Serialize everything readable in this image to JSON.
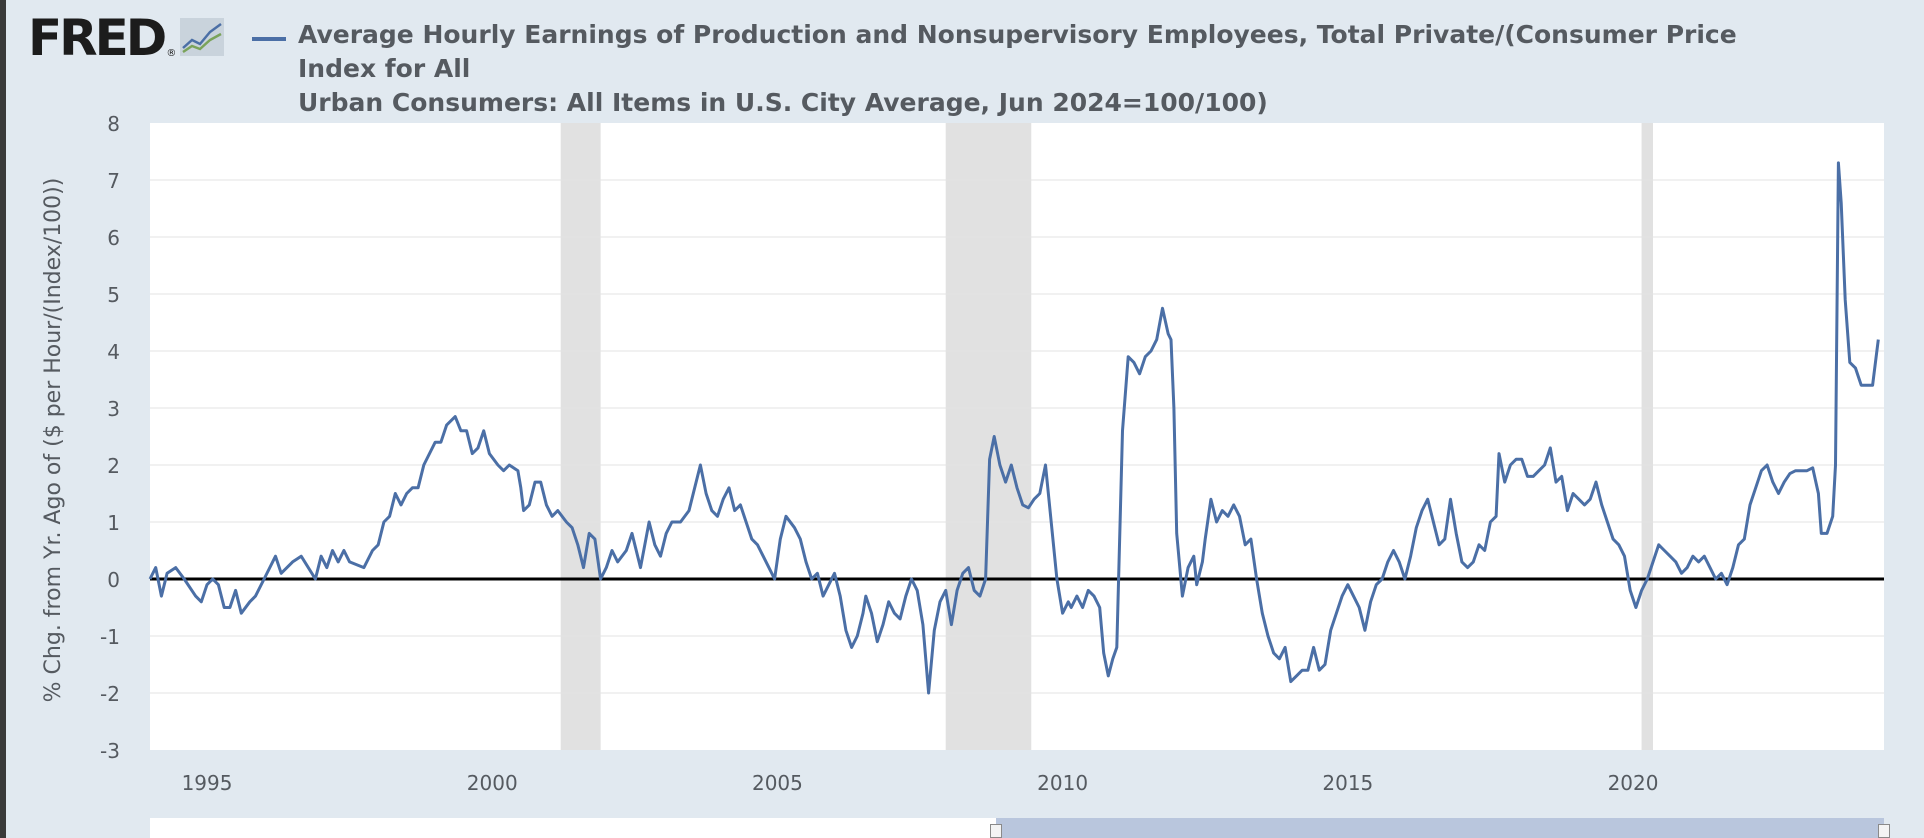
{
  "brand": {
    "logo_text": "FRED",
    "logo_mark": "®"
  },
  "colors": {
    "series": "#4b6fa6",
    "recession": "#e1e1e1",
    "zero_line": "#000000",
    "background": "#e1e9f0"
  },
  "chart_data": {
    "type": "line",
    "title": "Average Hourly Earnings of Production and Nonsupervisory Employees, Total Private/(Consumer Price Index for All\nUrban Consumers: All Items in U.S. City Average, Jun 2024=100/100)",
    "ylabel": "% Chg. from Yr. Ago of ($ per Hour/(Index/100))",
    "xlabel": "",
    "xlim": [
      1994.0,
      2024.4
    ],
    "ylim": [
      -3,
      8
    ],
    "y_ticks": [
      "8",
      "7",
      "6",
      "5",
      "4",
      "3",
      "2",
      "1",
      "0",
      "-1",
      "-2",
      "-3"
    ],
    "x_ticks": [
      "1995",
      "2000",
      "2005",
      "2010",
      "2015",
      "2020"
    ],
    "grid": true,
    "reference_line": 0,
    "recessions": [
      [
        2001.2,
        2001.9
      ],
      [
        2007.95,
        2009.45
      ],
      [
        2020.15,
        2020.35
      ]
    ],
    "series": [
      {
        "name": "Average Hourly Earnings of Production and Nonsupervisory Employees, Total Private/(Consumer Price Index for All Urban Consumers: All Items in U.S. City Average, Jun 2024=100/100)",
        "points": [
          [
            1994.0,
            0.0
          ],
          [
            1994.1,
            0.2
          ],
          [
            1994.2,
            -0.3
          ],
          [
            1994.3,
            0.1
          ],
          [
            1994.45,
            0.2
          ],
          [
            1994.6,
            0.0
          ],
          [
            1994.8,
            -0.3
          ],
          [
            1994.9,
            -0.4
          ],
          [
            1995.0,
            -0.1
          ],
          [
            1995.1,
            0.0
          ],
          [
            1995.2,
            -0.1
          ],
          [
            1995.3,
            -0.5
          ],
          [
            1995.4,
            -0.5
          ],
          [
            1995.5,
            -0.2
          ],
          [
            1995.6,
            -0.6
          ],
          [
            1995.75,
            -0.4
          ],
          [
            1995.85,
            -0.3
          ],
          [
            1996.0,
            0.0
          ],
          [
            1996.2,
            0.4
          ],
          [
            1996.3,
            0.1
          ],
          [
            1996.5,
            0.3
          ],
          [
            1996.65,
            0.4
          ],
          [
            1996.9,
            0.0
          ],
          [
            1997.0,
            0.4
          ],
          [
            1997.1,
            0.2
          ],
          [
            1997.2,
            0.5
          ],
          [
            1997.3,
            0.3
          ],
          [
            1997.4,
            0.5
          ],
          [
            1997.5,
            0.3
          ],
          [
            1997.75,
            0.2
          ],
          [
            1997.9,
            0.5
          ],
          [
            1998.0,
            0.6
          ],
          [
            1998.1,
            1.0
          ],
          [
            1998.2,
            1.1
          ],
          [
            1998.3,
            1.5
          ],
          [
            1998.4,
            1.3
          ],
          [
            1998.5,
            1.5
          ],
          [
            1998.6,
            1.6
          ],
          [
            1998.7,
            1.6
          ],
          [
            1998.8,
            2.0
          ],
          [
            1999.0,
            2.4
          ],
          [
            1999.1,
            2.4
          ],
          [
            1999.2,
            2.7
          ],
          [
            1999.35,
            2.85
          ],
          [
            1999.45,
            2.6
          ],
          [
            1999.55,
            2.6
          ],
          [
            1999.65,
            2.2
          ],
          [
            1999.75,
            2.3
          ],
          [
            1999.85,
            2.6
          ],
          [
            1999.95,
            2.2
          ],
          [
            2000.1,
            2.0
          ],
          [
            2000.2,
            1.9
          ],
          [
            2000.3,
            2.0
          ],
          [
            2000.45,
            1.9
          ],
          [
            2000.5,
            1.6
          ],
          [
            2000.55,
            1.2
          ],
          [
            2000.65,
            1.3
          ],
          [
            2000.75,
            1.7
          ],
          [
            2000.85,
            1.7
          ],
          [
            2000.95,
            1.3
          ],
          [
            2001.05,
            1.1
          ],
          [
            2001.15,
            1.2
          ],
          [
            2001.3,
            1.0
          ],
          [
            2001.4,
            0.9
          ],
          [
            2001.5,
            0.6
          ],
          [
            2001.6,
            0.2
          ],
          [
            2001.7,
            0.8
          ],
          [
            2001.8,
            0.7
          ],
          [
            2001.9,
            0.0
          ],
          [
            2002.0,
            0.2
          ],
          [
            2002.1,
            0.5
          ],
          [
            2002.2,
            0.3
          ],
          [
            2002.35,
            0.5
          ],
          [
            2002.45,
            0.8
          ],
          [
            2002.6,
            0.2
          ],
          [
            2002.75,
            1.0
          ],
          [
            2002.85,
            0.6
          ],
          [
            2002.95,
            0.4
          ],
          [
            2003.05,
            0.8
          ],
          [
            2003.15,
            1.0
          ],
          [
            2003.3,
            1.0
          ],
          [
            2003.45,
            1.2
          ],
          [
            2003.55,
            1.6
          ],
          [
            2003.65,
            2.0
          ],
          [
            2003.75,
            1.5
          ],
          [
            2003.85,
            1.2
          ],
          [
            2003.95,
            1.1
          ],
          [
            2004.05,
            1.4
          ],
          [
            2004.15,
            1.6
          ],
          [
            2004.25,
            1.2
          ],
          [
            2004.35,
            1.3
          ],
          [
            2004.45,
            1.0
          ],
          [
            2004.55,
            0.7
          ],
          [
            2004.65,
            0.6
          ],
          [
            2004.75,
            0.4
          ],
          [
            2004.85,
            0.2
          ],
          [
            2004.95,
            0.0
          ],
          [
            2005.05,
            0.7
          ],
          [
            2005.15,
            1.1
          ],
          [
            2005.3,
            0.9
          ],
          [
            2005.4,
            0.7
          ],
          [
            2005.5,
            0.3
          ],
          [
            2005.6,
            0.0
          ],
          [
            2005.7,
            0.1
          ],
          [
            2005.8,
            -0.3
          ],
          [
            2005.9,
            -0.1
          ],
          [
            2006.0,
            0.1
          ],
          [
            2006.1,
            -0.3
          ],
          [
            2006.2,
            -0.9
          ],
          [
            2006.3,
            -1.2
          ],
          [
            2006.4,
            -1.0
          ],
          [
            2006.5,
            -0.6
          ],
          [
            2006.55,
            -0.3
          ],
          [
            2006.65,
            -0.6
          ],
          [
            2006.75,
            -1.1
          ],
          [
            2006.85,
            -0.8
          ],
          [
            2006.95,
            -0.4
          ],
          [
            2007.05,
            -0.6
          ],
          [
            2007.15,
            -0.7
          ],
          [
            2007.25,
            -0.3
          ],
          [
            2007.35,
            0.0
          ],
          [
            2007.45,
            -0.2
          ],
          [
            2007.55,
            -0.8
          ],
          [
            2007.65,
            -2.0
          ],
          [
            2007.75,
            -0.9
          ],
          [
            2007.85,
            -0.4
          ],
          [
            2007.95,
            -0.2
          ],
          [
            2008.05,
            -0.8
          ],
          [
            2008.15,
            -0.2
          ],
          [
            2008.25,
            0.1
          ],
          [
            2008.35,
            0.2
          ],
          [
            2008.45,
            -0.2
          ],
          [
            2008.55,
            -0.3
          ],
          [
            2008.65,
            0.0
          ],
          [
            2008.72,
            2.1
          ],
          [
            2008.8,
            2.5
          ],
          [
            2008.9,
            2.0
          ],
          [
            2009.0,
            1.7
          ],
          [
            2009.1,
            2.0
          ],
          [
            2009.2,
            1.6
          ],
          [
            2009.3,
            1.3
          ],
          [
            2009.4,
            1.25
          ],
          [
            2009.5,
            1.4
          ],
          [
            2009.6,
            1.5
          ],
          [
            2009.7,
            2.0
          ],
          [
            2009.8,
            1.0
          ],
          [
            2009.9,
            0.0
          ],
          [
            2010.0,
            -0.6
          ],
          [
            2010.1,
            -0.4
          ],
          [
            2010.15,
            -0.5
          ],
          [
            2010.25,
            -0.3
          ],
          [
            2010.35,
            -0.5
          ],
          [
            2010.45,
            -0.2
          ],
          [
            2010.55,
            -0.3
          ],
          [
            2010.65,
            -0.5
          ],
          [
            2010.72,
            -1.3
          ],
          [
            2010.8,
            -1.7
          ],
          [
            2010.88,
            -1.4
          ],
          [
            2010.95,
            -1.2
          ],
          [
            2011.05,
            2.6
          ],
          [
            2011.15,
            3.9
          ],
          [
            2011.25,
            3.8
          ],
          [
            2011.35,
            3.6
          ],
          [
            2011.45,
            3.9
          ],
          [
            2011.55,
            4.0
          ],
          [
            2011.65,
            4.2
          ],
          [
            2011.75,
            4.75
          ],
          [
            2011.85,
            4.3
          ],
          [
            2011.9,
            4.2
          ],
          [
            2011.95,
            3.0
          ],
          [
            2012.0,
            0.8
          ],
          [
            2012.1,
            -0.3
          ],
          [
            2012.2,
            0.2
          ],
          [
            2012.3,
            0.4
          ],
          [
            2012.35,
            -0.1
          ],
          [
            2012.45,
            0.3
          ],
          [
            2012.5,
            0.7
          ],
          [
            2012.6,
            1.4
          ],
          [
            2012.7,
            1.0
          ],
          [
            2012.8,
            1.2
          ],
          [
            2012.9,
            1.1
          ],
          [
            2013.0,
            1.3
          ],
          [
            2013.1,
            1.1
          ],
          [
            2013.2,
            0.6
          ],
          [
            2013.3,
            0.7
          ],
          [
            2013.4,
            0.0
          ],
          [
            2013.5,
            -0.6
          ],
          [
            2013.6,
            -1.0
          ],
          [
            2013.7,
            -1.3
          ],
          [
            2013.8,
            -1.4
          ],
          [
            2013.9,
            -1.2
          ],
          [
            2014.0,
            -1.8
          ],
          [
            2014.1,
            -1.7
          ],
          [
            2014.2,
            -1.6
          ],
          [
            2014.3,
            -1.6
          ],
          [
            2014.4,
            -1.2
          ],
          [
            2014.5,
            -1.6
          ],
          [
            2014.6,
            -1.5
          ],
          [
            2014.7,
            -0.9
          ],
          [
            2014.8,
            -0.6
          ],
          [
            2014.9,
            -0.3
          ],
          [
            2015.0,
            -0.1
          ],
          [
            2015.1,
            -0.3
          ],
          [
            2015.2,
            -0.5
          ],
          [
            2015.3,
            -0.9
          ],
          [
            2015.4,
            -0.4
          ],
          [
            2015.5,
            -0.1
          ],
          [
            2015.6,
            0.0
          ],
          [
            2015.7,
            0.3
          ],
          [
            2015.8,
            0.5
          ],
          [
            2015.9,
            0.3
          ],
          [
            2016.0,
            0.0
          ],
          [
            2016.1,
            0.4
          ],
          [
            2016.2,
            0.9
          ],
          [
            2016.3,
            1.2
          ],
          [
            2016.4,
            1.4
          ],
          [
            2016.5,
            1.0
          ],
          [
            2016.6,
            0.6
          ],
          [
            2016.7,
            0.7
          ],
          [
            2016.8,
            1.4
          ],
          [
            2016.9,
            0.8
          ],
          [
            2017.0,
            0.3
          ],
          [
            2017.1,
            0.2
          ],
          [
            2017.2,
            0.3
          ],
          [
            2017.3,
            0.6
          ],
          [
            2017.4,
            0.5
          ],
          [
            2017.5,
            1.0
          ],
          [
            2017.6,
            1.1
          ],
          [
            2017.65,
            2.2
          ],
          [
            2017.75,
            1.7
          ],
          [
            2017.85,
            2.0
          ],
          [
            2017.95,
            2.1
          ],
          [
            2018.05,
            2.1
          ],
          [
            2018.15,
            1.8
          ],
          [
            2018.25,
            1.8
          ],
          [
            2018.35,
            1.9
          ],
          [
            2018.45,
            2.0
          ],
          [
            2018.55,
            2.3
          ],
          [
            2018.65,
            1.7
          ],
          [
            2018.75,
            1.8
          ],
          [
            2018.85,
            1.2
          ],
          [
            2018.95,
            1.5
          ],
          [
            2019.05,
            1.4
          ],
          [
            2019.15,
            1.3
          ],
          [
            2019.25,
            1.4
          ],
          [
            2019.35,
            1.7
          ],
          [
            2019.45,
            1.3
          ],
          [
            2019.55,
            1.0
          ],
          [
            2019.65,
            0.7
          ],
          [
            2019.75,
            0.6
          ],
          [
            2019.85,
            0.4
          ],
          [
            2019.95,
            -0.2
          ],
          [
            2020.05,
            -0.5
          ],
          [
            2020.15,
            -0.2
          ],
          [
            2020.25,
            0.0
          ],
          [
            2020.35,
            0.3
          ],
          [
            2020.45,
            0.6
          ],
          [
            2020.55,
            0.5
          ],
          [
            2020.65,
            0.4
          ],
          [
            2020.75,
            0.3
          ],
          [
            2020.85,
            0.1
          ],
          [
            2020.95,
            0.2
          ],
          [
            2021.05,
            0.4
          ],
          [
            2021.15,
            0.3
          ],
          [
            2021.25,
            0.4
          ],
          [
            2021.35,
            0.2
          ],
          [
            2021.45,
            0.0
          ],
          [
            2021.55,
            0.1
          ],
          [
            2021.65,
            -0.1
          ],
          [
            2021.75,
            0.2
          ],
          [
            2021.85,
            0.6
          ],
          [
            2021.95,
            0.7
          ],
          [
            2022.05,
            1.3
          ],
          [
            2022.15,
            1.6
          ],
          [
            2022.25,
            1.9
          ],
          [
            2022.35,
            2.0
          ],
          [
            2022.45,
            1.7
          ],
          [
            2022.55,
            1.5
          ],
          [
            2022.65,
            1.7
          ],
          [
            2022.75,
            1.85
          ],
          [
            2022.85,
            1.9
          ],
          [
            2022.95,
            1.9
          ],
          [
            2023.05,
            1.9
          ],
          [
            2023.15,
            1.95
          ],
          [
            2023.25,
            1.5
          ],
          [
            2023.3,
            0.8
          ],
          [
            2023.4,
            0.8
          ],
          [
            2023.5,
            1.1
          ],
          [
            2023.55,
            2.0
          ],
          [
            2023.6,
            7.3
          ],
          [
            2023.65,
            6.6
          ],
          [
            2023.72,
            4.9
          ],
          [
            2023.8,
            3.8
          ],
          [
            2023.9,
            3.7
          ],
          [
            2024.0,
            3.4
          ],
          [
            2024.1,
            3.4
          ],
          [
            2024.2,
            3.4
          ],
          [
            2024.3,
            4.2
          ]
        ]
      }
    ]
  },
  "navigator": {
    "window": [
      2009.0,
      2024.4
    ]
  }
}
